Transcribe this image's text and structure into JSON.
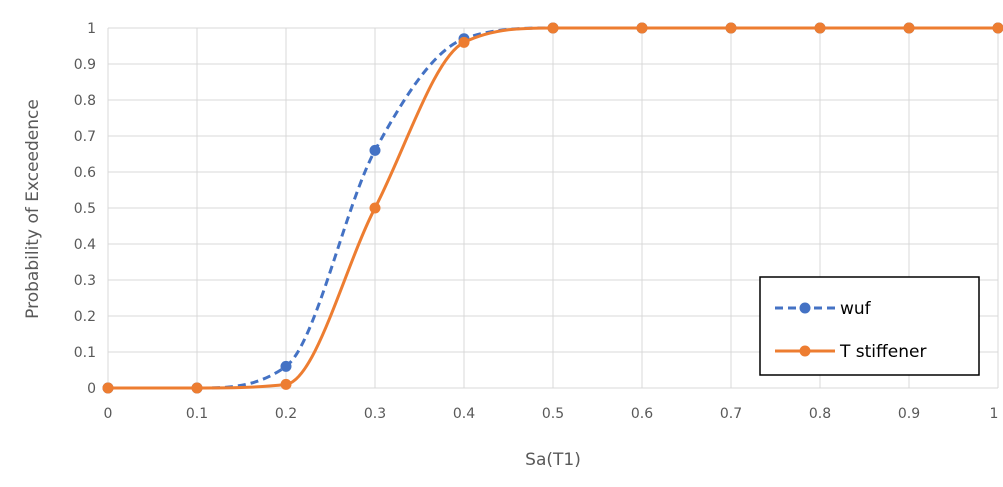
{
  "colors": {
    "background": "#ffffff",
    "gridline": "#d9d9d9",
    "axis_text": "#595959",
    "wuf": "#4472c4",
    "t_stiffener": "#ed7d31"
  },
  "chart_data": {
    "type": "line",
    "title": "",
    "xlabel": "Sa(T1)",
    "ylabel": "Probability of Exceedence",
    "xlim": [
      0,
      1
    ],
    "ylim": [
      0,
      1
    ],
    "x_ticks": [
      "0",
      "0.1",
      "0.2",
      "0.3",
      "0.4",
      "0.5",
      "0.6",
      "0.7",
      "0.8",
      "0.9",
      "1"
    ],
    "y_ticks": [
      "0",
      "0.1",
      "0.2",
      "0.3",
      "0.4",
      "0.5",
      "0.6",
      "0.7",
      "0.8",
      "0.9",
      "1"
    ],
    "grid": true,
    "legend": "bottom-right",
    "series": [
      {
        "name": "wuf",
        "style": "dashed",
        "marker": "circle",
        "color": "#4472c4",
        "x": [
          0,
          0.1,
          0.2,
          0.3,
          0.4,
          0.5,
          0.6,
          0.7,
          0.8,
          0.9,
          1
        ],
        "y": [
          0,
          0,
          0.06,
          0.66,
          0.97,
          1,
          1,
          1,
          1,
          1,
          1
        ]
      },
      {
        "name": "T stiffener",
        "style": "solid",
        "marker": "circle",
        "color": "#ed7d31",
        "x": [
          0,
          0.1,
          0.2,
          0.3,
          0.4,
          0.5,
          0.6,
          0.7,
          0.8,
          0.9,
          1
        ],
        "y": [
          0,
          0,
          0.01,
          0.5,
          0.96,
          1,
          1,
          1,
          1,
          1,
          1
        ]
      }
    ]
  }
}
